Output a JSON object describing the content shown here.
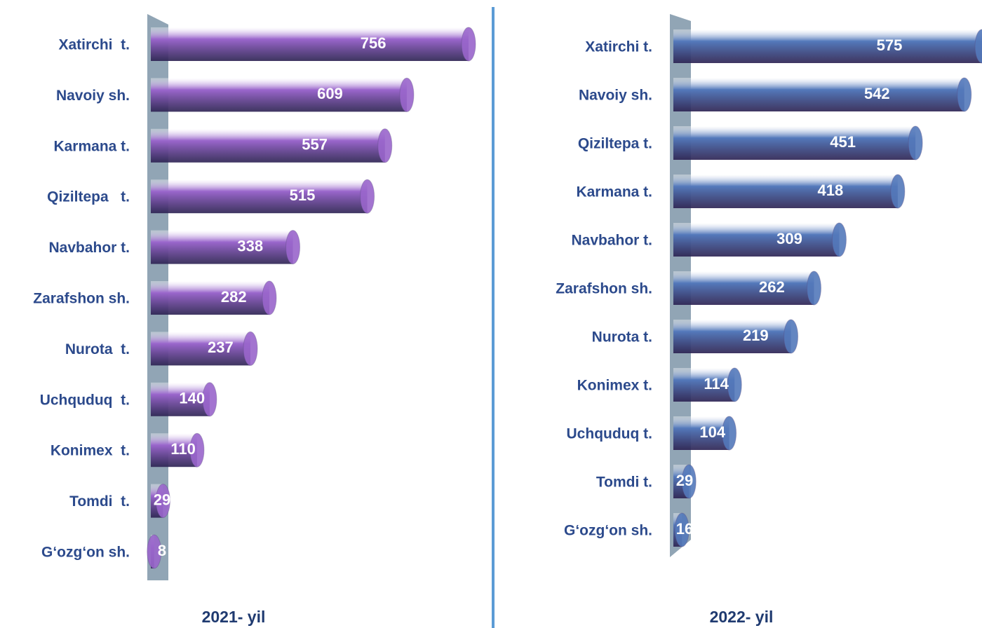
{
  "chart_data": [
    {
      "type": "bar",
      "title": "2021- yil",
      "color": "#9a66cc",
      "categories": [
        "Xatirchi  t.",
        "Navoiy sh.",
        "Karmana t.",
        "Qiziltepa   t.",
        "Navbahor t.",
        "Zarafshon sh.",
        "Nurota  t.",
        "Uchquduq  t.",
        "Konimex  t.",
        "Tomdi  t.",
        "G‘ozg‘on sh."
      ],
      "values": [
        756,
        609,
        557,
        515,
        338,
        282,
        237,
        140,
        110,
        29,
        8
      ]
    },
    {
      "type": "bar",
      "title": "2022- yil",
      "color": "#5479bb",
      "categories": [
        "Xatirchi t.",
        "Navoiy sh.",
        "Qiziltepa t.",
        "Karmana t.",
        "Navbahor t.",
        "Zarafshon sh.",
        "Nurota t.",
        "Konimex t.",
        "Uchquduq t.",
        "Tomdi t.",
        "G‘ozg‘on sh."
      ],
      "values": [
        575,
        542,
        451,
        418,
        309,
        262,
        219,
        114,
        104,
        29,
        16
      ]
    }
  ]
}
